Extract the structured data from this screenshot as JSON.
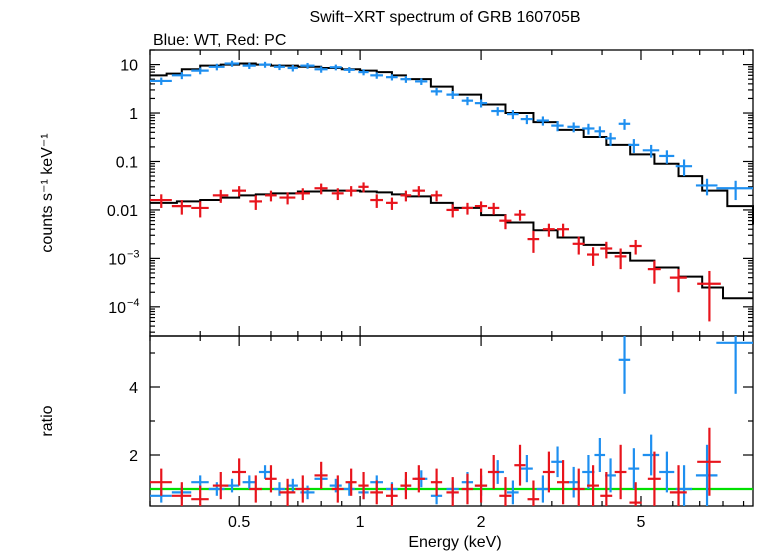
{
  "title": "Swift−XRT spectrum of GRB 160705B",
  "subtitle": "Blue: WT, Red: PC",
  "colors": {
    "wt": "#1e8ff0",
    "pc": "#e8141c",
    "model": "#000000",
    "unity": "#00e000"
  },
  "chart_data": [
    {
      "type": "scatter",
      "panel": "spectrum",
      "xlabel": "Energy (keV)",
      "ylabel": "counts s⁻¹ keV⁻¹",
      "xscale": "log",
      "yscale": "log",
      "xlim": [
        0.3,
        9.5
      ],
      "ylim": [
        2.5e-05,
        20
      ],
      "yticks": [
        {
          "v": 10,
          "label": "10",
          "sup": ""
        },
        {
          "v": 1,
          "label": "1",
          "sup": ""
        },
        {
          "v": 0.1,
          "label": "0.1",
          "sup": ""
        },
        {
          "v": 0.01,
          "label": "0.01",
          "sup": ""
        },
        {
          "v": 0.001,
          "label": "10",
          "sup": "−3"
        },
        {
          "v": 0.0001,
          "label": "10",
          "sup": "−4"
        }
      ],
      "series": [
        {
          "key": "wt",
          "x": [
            0.32,
            0.36,
            0.4,
            0.44,
            0.48,
            0.53,
            0.58,
            0.63,
            0.68,
            0.74,
            0.8,
            0.87,
            0.94,
            1.02,
            1.1,
            1.2,
            1.3,
            1.42,
            1.55,
            1.7,
            1.85,
            2.0,
            2.2,
            2.4,
            2.6,
            2.85,
            3.1,
            3.4,
            3.7,
            3.95,
            4.2,
            4.55,
            4.8,
            5.3,
            5.8,
            6.4,
            7.3,
            8.6
          ],
          "y": [
            4.6,
            6.0,
            7.5,
            9.0,
            10.5,
            9.5,
            10.0,
            9.0,
            8.5,
            9.5,
            8.0,
            8.8,
            7.8,
            7.0,
            6.0,
            5.5,
            5.0,
            4.5,
            2.8,
            2.4,
            1.8,
            1.6,
            1.1,
            0.95,
            0.75,
            0.7,
            0.55,
            0.52,
            0.48,
            0.42,
            0.3,
            0.6,
            0.22,
            0.17,
            0.13,
            0.08,
            0.032,
            0.028
          ],
          "xerr": [
            0.02,
            0.02,
            0.02,
            0.02,
            0.02,
            0.02,
            0.02,
            0.02,
            0.02,
            0.03,
            0.03,
            0.03,
            0.03,
            0.03,
            0.04,
            0.04,
            0.04,
            0.05,
            0.05,
            0.06,
            0.06,
            0.07,
            0.08,
            0.08,
            0.09,
            0.1,
            0.11,
            0.12,
            0.13,
            0.12,
            0.13,
            0.15,
            0.15,
            0.25,
            0.25,
            0.3,
            0.45,
            0.9
          ],
          "yerr": [
            0.8,
            1.0,
            1.2,
            1.4,
            1.5,
            1.4,
            1.4,
            1.3,
            1.3,
            1.3,
            1.2,
            1.2,
            1.1,
            1.0,
            0.9,
            0.8,
            0.8,
            0.7,
            0.5,
            0.45,
            0.35,
            0.3,
            0.22,
            0.2,
            0.16,
            0.15,
            0.13,
            0.12,
            0.12,
            0.11,
            0.09,
            0.15,
            0.07,
            0.05,
            0.04,
            0.03,
            0.012,
            0.012
          ]
        },
        {
          "key": "pc",
          "x": [
            0.32,
            0.36,
            0.4,
            0.45,
            0.5,
            0.55,
            0.6,
            0.66,
            0.72,
            0.8,
            0.88,
            0.95,
            1.02,
            1.1,
            1.2,
            1.3,
            1.4,
            1.55,
            1.7,
            1.85,
            2.0,
            2.15,
            2.3,
            2.5,
            2.7,
            2.95,
            3.2,
            3.5,
            3.8,
            4.1,
            4.45,
            4.85,
            5.4,
            6.2,
            7.4
          ],
          "y": [
            0.016,
            0.012,
            0.011,
            0.02,
            0.025,
            0.015,
            0.02,
            0.018,
            0.022,
            0.028,
            0.022,
            0.025,
            0.03,
            0.016,
            0.014,
            0.02,
            0.025,
            0.02,
            0.01,
            0.011,
            0.012,
            0.011,
            0.006,
            0.008,
            0.0025,
            0.004,
            0.004,
            0.002,
            0.0012,
            0.0016,
            0.0011,
            0.0018,
            0.0006,
            0.0004,
            0.0003
          ],
          "xerr": [
            0.02,
            0.02,
            0.02,
            0.02,
            0.02,
            0.02,
            0.02,
            0.03,
            0.03,
            0.03,
            0.03,
            0.03,
            0.03,
            0.04,
            0.04,
            0.04,
            0.05,
            0.05,
            0.06,
            0.06,
            0.07,
            0.07,
            0.08,
            0.08,
            0.09,
            0.1,
            0.11,
            0.12,
            0.13,
            0.14,
            0.15,
            0.17,
            0.2,
            0.3,
            0.5
          ],
          "yerr": [
            0.005,
            0.004,
            0.004,
            0.006,
            0.006,
            0.005,
            0.005,
            0.005,
            0.006,
            0.007,
            0.006,
            0.006,
            0.007,
            0.005,
            0.004,
            0.005,
            0.006,
            0.005,
            0.003,
            0.003,
            0.003,
            0.003,
            0.002,
            0.002,
            0.0012,
            0.0012,
            0.0012,
            0.0008,
            0.0005,
            0.0006,
            0.0005,
            0.0006,
            0.0003,
            0.0002,
            0.00025
          ]
        }
      ],
      "model": {
        "wt": {
          "x": [
            0.3,
            0.33,
            0.36,
            0.4,
            0.45,
            0.5,
            0.55,
            0.6,
            0.7,
            0.8,
            0.9,
            1.0,
            1.1,
            1.2,
            1.3,
            1.5,
            1.7,
            2.0,
            2.3,
            2.7,
            3.1,
            3.6,
            4.1,
            4.7,
            5.4,
            6.2,
            7.1,
            8.2,
            9.5
          ],
          "y": [
            6.0,
            6.5,
            8.0,
            9.5,
            10.0,
            10.5,
            10.0,
            9.5,
            9.0,
            8.5,
            8.0,
            7.5,
            7.0,
            6.0,
            5.0,
            3.5,
            2.4,
            1.5,
            1.0,
            0.65,
            0.45,
            0.32,
            0.22,
            0.14,
            0.09,
            0.05,
            0.025,
            0.012,
            0.005
          ]
        },
        "pc": {
          "x": [
            0.3,
            0.35,
            0.4,
            0.45,
            0.5,
            0.55,
            0.6,
            0.7,
            0.8,
            0.9,
            1.0,
            1.1,
            1.2,
            1.3,
            1.5,
            1.7,
            2.0,
            2.3,
            2.7,
            3.1,
            3.6,
            4.1,
            4.7,
            5.4,
            6.2,
            7.1,
            8.0
          ],
          "y": [
            0.014,
            0.015,
            0.016,
            0.018,
            0.02,
            0.021,
            0.022,
            0.024,
            0.025,
            0.025,
            0.024,
            0.023,
            0.021,
            0.019,
            0.014,
            0.011,
            0.0078,
            0.0055,
            0.0038,
            0.0027,
            0.0019,
            0.0013,
            0.0009,
            0.00065,
            0.00042,
            0.00025,
            0.00015
          ]
        }
      }
    },
    {
      "type": "scatter",
      "panel": "ratio",
      "xlabel": "Energy (keV)",
      "ylabel": "ratio",
      "xscale": "log",
      "xlim": [
        0.3,
        9.5
      ],
      "ylim": [
        0.5,
        5.5
      ],
      "yticks": [
        {
          "v": 2,
          "label": "2"
        },
        {
          "v": 4,
          "label": "4"
        }
      ],
      "reference_line": 1,
      "series": [
        {
          "key": "wt",
          "x": [
            0.32,
            0.36,
            0.4,
            0.44,
            0.48,
            0.53,
            0.58,
            0.63,
            0.68,
            0.74,
            0.8,
            0.87,
            0.94,
            1.02,
            1.1,
            1.2,
            1.3,
            1.42,
            1.55,
            1.7,
            1.85,
            2.0,
            2.2,
            2.4,
            2.6,
            2.85,
            3.1,
            3.4,
            3.7,
            3.95,
            4.2,
            4.55,
            4.8,
            5.3,
            5.8,
            6.4,
            7.3,
            8.6
          ],
          "y": [
            0.8,
            0.9,
            1.2,
            1.0,
            1.1,
            1.2,
            1.5,
            1.0,
            1.1,
            0.9,
            1.3,
            1.1,
            1.0,
            0.9,
            1.2,
            1.0,
            1.1,
            1.3,
            0.8,
            1.0,
            1.2,
            1.1,
            1.5,
            0.9,
            1.6,
            1.0,
            1.8,
            1.2,
            1.5,
            2.0,
            1.4,
            4.8,
            1.6,
            2.0,
            1.5,
            1.0,
            1.4,
            5.3
          ],
          "yerr": [
            0.2,
            0.2,
            0.2,
            0.2,
            0.2,
            0.2,
            0.2,
            0.2,
            0.2,
            0.2,
            0.2,
            0.2,
            0.2,
            0.2,
            0.2,
            0.2,
            0.2,
            0.25,
            0.25,
            0.25,
            0.3,
            0.3,
            0.35,
            0.35,
            0.4,
            0.4,
            0.45,
            0.45,
            0.5,
            0.5,
            0.5,
            1.0,
            0.6,
            0.6,
            0.6,
            0.7,
            0.9,
            1.5
          ]
        },
        {
          "key": "pc",
          "x": [
            0.32,
            0.36,
            0.4,
            0.45,
            0.5,
            0.55,
            0.6,
            0.66,
            0.72,
            0.8,
            0.88,
            0.95,
            1.02,
            1.1,
            1.2,
            1.3,
            1.4,
            1.55,
            1.7,
            1.85,
            2.0,
            2.15,
            2.3,
            2.5,
            2.7,
            2.95,
            3.2,
            3.5,
            3.8,
            4.1,
            4.45,
            4.85,
            5.4,
            6.2,
            7.4
          ],
          "y": [
            1.2,
            0.8,
            0.7,
            1.1,
            1.5,
            1.0,
            1.3,
            0.9,
            1.0,
            1.4,
            1.0,
            1.2,
            1.1,
            0.9,
            0.8,
            1.1,
            1.3,
            1.2,
            0.9,
            1.0,
            1.1,
            1.5,
            0.8,
            1.7,
            0.7,
            1.5,
            1.2,
            1.0,
            1.1,
            0.8,
            1.5,
            0.6,
            1.3,
            0.9,
            1.8
          ],
          "yerr": [
            0.4,
            0.4,
            0.4,
            0.4,
            0.4,
            0.4,
            0.4,
            0.4,
            0.4,
            0.4,
            0.4,
            0.4,
            0.4,
            0.35,
            0.35,
            0.4,
            0.4,
            0.4,
            0.45,
            0.45,
            0.5,
            0.5,
            0.55,
            0.6,
            0.55,
            0.6,
            0.65,
            0.6,
            0.6,
            0.7,
            0.8,
            0.6,
            0.8,
            0.8,
            1.0
          ]
        }
      ],
      "xticks": [
        {
          "v": 0.5,
          "label": "0.5"
        },
        {
          "v": 1,
          "label": "1"
        },
        {
          "v": 2,
          "label": "2"
        },
        {
          "v": 5,
          "label": "5"
        }
      ]
    }
  ]
}
